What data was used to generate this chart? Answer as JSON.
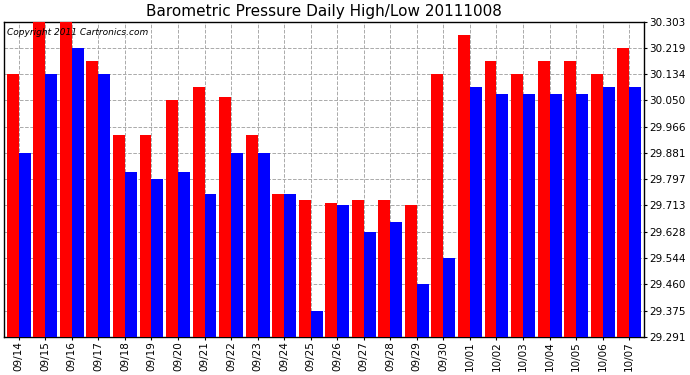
{
  "title": "Barometric Pressure Daily High/Low 20111008",
  "copyright": "Copyright 2011 Cartronics.com",
  "background_color": "#ffffff",
  "dates": [
    "09/14",
    "09/15",
    "09/16",
    "09/17",
    "09/18",
    "09/19",
    "09/20",
    "09/21",
    "09/22",
    "09/23",
    "09/24",
    "09/25",
    "09/26",
    "09/27",
    "09/28",
    "09/29",
    "09/30",
    "10/01",
    "10/02",
    "10/03",
    "10/04",
    "10/05",
    "10/06",
    "10/07"
  ],
  "highs": [
    30.134,
    30.303,
    30.303,
    30.176,
    29.94,
    29.94,
    30.05,
    30.092,
    30.06,
    29.94,
    29.75,
    29.73,
    29.72,
    29.73,
    29.73,
    29.713,
    30.134,
    30.26,
    30.176,
    30.134,
    30.176,
    30.176,
    30.134,
    30.219
  ],
  "lows": [
    29.881,
    30.134,
    30.219,
    30.134,
    29.82,
    29.797,
    29.82,
    29.75,
    29.881,
    29.881,
    29.75,
    29.375,
    29.713,
    29.628,
    29.66,
    29.46,
    29.544,
    30.092,
    30.07,
    30.07,
    30.07,
    30.07,
    30.092,
    30.092
  ],
  "high_color": "#ff0000",
  "low_color": "#0000ff",
  "ylim_min": 29.291,
  "ylim_max": 30.303,
  "yticks": [
    29.291,
    29.375,
    29.46,
    29.544,
    29.628,
    29.713,
    29.797,
    29.881,
    29.966,
    30.05,
    30.134,
    30.219,
    30.303
  ],
  "grid_color": "#aaaaaa",
  "title_fontsize": 11,
  "tick_fontsize": 7.5,
  "copyright_fontsize": 6.5,
  "bar_width": 0.45,
  "bar_gap": 0.02
}
